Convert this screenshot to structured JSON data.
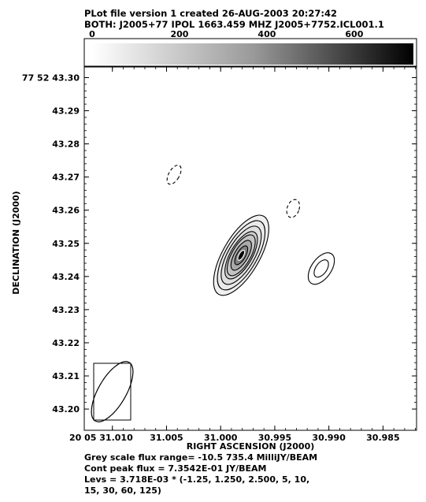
{
  "header": {
    "line1": "PLot file version 1  created 26-AUG-2003 20:27:42",
    "line2": "BOTH: J2005+77  IPOL  1663.459 MHZ  J2005+7752.ICL001.1"
  },
  "colorbar": {
    "min": 0,
    "max": 735.4,
    "ticks": [
      "0",
      "200",
      "400",
      "600"
    ],
    "tick_values": [
      0,
      200,
      400,
      600
    ]
  },
  "footer": {
    "line1": "Grey scale flux range= -10.5 735.4 MilliJY/BEAM",
    "line2": "Cont peak flux =  7.3542E-01 JY/BEAM",
    "line3": "Levs = 3.718E-03 * (-1.25, 1.250, 2.500, 5, 10,",
    "line4": "15, 30, 60, 125)"
  },
  "chart_data": {
    "type": "heatmap",
    "title": "",
    "xlabel": "RIGHT ASCENSION (J2000)",
    "ylabel": "DECLINATION (J2000)",
    "x_tick_labels": [
      "20 05 31.010",
      "31.005",
      "31.000",
      "30.995",
      "30.990",
      "30.985"
    ],
    "x_tick_seconds": [
      31.01,
      31.005,
      31.0,
      30.995,
      30.99,
      30.985
    ],
    "xlim_seconds": [
      31.0126,
      30.9819
    ],
    "y_tick_labels": [
      "77 52 43.30",
      "43.29",
      "43.28",
      "43.27",
      "43.26",
      "43.25",
      "43.24",
      "43.23",
      "43.22",
      "43.21",
      "43.20"
    ],
    "y_tick_arcsec": [
      43.3,
      43.29,
      43.28,
      43.27,
      43.26,
      43.25,
      43.24,
      43.23,
      43.22,
      43.21,
      43.2
    ],
    "ylim_arcsec": [
      43.1936,
      43.3032
    ],
    "colormap": "grey",
    "grey_range_mJy": [
      -10.5,
      735.4
    ],
    "peak_flux_Jy": 0.73542,
    "base_level_Jy": 0.003718,
    "level_multipliers": [
      -1.25,
      1.25,
      2.5,
      5,
      10,
      15,
      30,
      60,
      125
    ],
    "source": {
      "ra_seconds": 30.9981,
      "dec_arcsec": 43.2464,
      "major_axis_arcsec": 0.0142,
      "minor_axis_arcsec": 0.0058,
      "position_angle_deg": 30,
      "peak_mJy": 735.4
    },
    "secondary_components": [
      {
        "ra_seconds": 30.9907,
        "dec_arcsec": 43.2424,
        "major_axis_arcsec": 0.0054,
        "minor_axis_arcsec": 0.003,
        "position_angle_deg": 35,
        "level_multipliers": [
          1.25,
          2.5
        ]
      },
      {
        "ra_seconds": 30.9933,
        "dec_arcsec": 43.2605,
        "major_axis_arcsec": 0.0028,
        "minor_axis_arcsec": 0.0018,
        "position_angle_deg": 20,
        "level_multipliers": [
          -1.25
        ]
      },
      {
        "ra_seconds": 31.0043,
        "dec_arcsec": 43.2707,
        "major_axis_arcsec": 0.0032,
        "minor_axis_arcsec": 0.0016,
        "position_angle_deg": 30,
        "level_multipliers": [
          -1.25
        ]
      }
    ],
    "beam": {
      "major_axis_arcsec": 0.0102,
      "minor_axis_arcsec": 0.0042,
      "position_angle_deg": 30
    },
    "grid": false,
    "legend": "none"
  }
}
